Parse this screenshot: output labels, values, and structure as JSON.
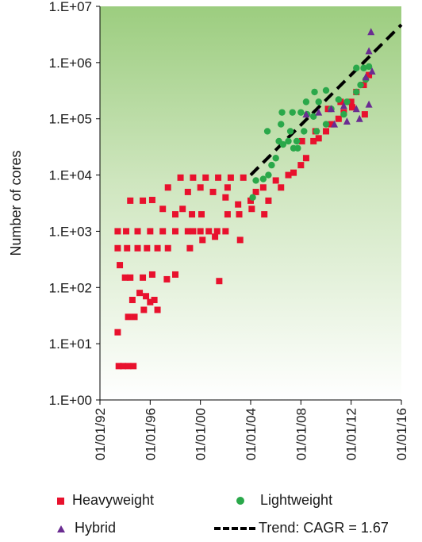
{
  "chart_data": {
    "type": "scatter",
    "title": "",
    "xlabel": "",
    "ylabel": "Number of cores",
    "y_scale": "log",
    "ylim": [
      1,
      10000000
    ],
    "xlim": [
      "1992-01-01",
      "2016-01-01"
    ],
    "x_ticks": [
      "01/01/92",
      "01/01/96",
      "01/01/00",
      "01/01/04",
      "01/01/08",
      "01/01/12",
      "01/01/16"
    ],
    "y_ticks": [
      "1.E+00",
      "1.E+01",
      "1.E+02",
      "1.E+03",
      "1.E+04",
      "1.E+05",
      "1.E+06",
      "1.E+07"
    ],
    "background": "gradient green (top) to white (bottom)",
    "legend_position": "bottom",
    "series": [
      {
        "name": "Heavyweight",
        "marker": "square",
        "color": "#e8112d",
        "points": [
          [
            "1993-07-01",
            4
          ],
          [
            "1993-11-01",
            4
          ],
          [
            "1994-04-01",
            4
          ],
          [
            "1994-09-01",
            4
          ],
          [
            "1993-06-01",
            16
          ],
          [
            "1994-04-01",
            30
          ],
          [
            "1994-10-01",
            30
          ],
          [
            "1994-08-01",
            60
          ],
          [
            "1995-03-01",
            80
          ],
          [
            "1995-07-01",
            40
          ],
          [
            "1995-09-01",
            70
          ],
          [
            "1996-01-01",
            55
          ],
          [
            "1996-08-01",
            40
          ],
          [
            "1996-05-01",
            60
          ],
          [
            "1993-08-01",
            250
          ],
          [
            "1994-01-01",
            150
          ],
          [
            "1994-06-01",
            150
          ],
          [
            "1995-06-01",
            150
          ],
          [
            "1996-03-01",
            170
          ],
          [
            "1997-05-01",
            140
          ],
          [
            "1998-01-01",
            170
          ],
          [
            "2001-07-01",
            130
          ],
          [
            "1993-06-01",
            500
          ],
          [
            "1994-03-01",
            500
          ],
          [
            "1995-01-01",
            500
          ],
          [
            "1995-10-01",
            500
          ],
          [
            "1996-08-01",
            500
          ],
          [
            "1997-06-01",
            500
          ],
          [
            "1993-06-01",
            1000
          ],
          [
            "1994-02-01",
            1000
          ],
          [
            "1995-01-01",
            1000
          ],
          [
            "1996-01-01",
            1000
          ],
          [
            "1997-01-01",
            1000
          ],
          [
            "1998-01-01",
            1000
          ],
          [
            "1999-01-01",
            1000
          ],
          [
            "1999-06-01",
            1000
          ],
          [
            "2000-01-01",
            1000
          ],
          [
            "2000-09-01",
            1000
          ],
          [
            "2001-05-01",
            1000
          ],
          [
            "2002-01-01",
            1000
          ],
          [
            "1994-06-01",
            3500
          ],
          [
            "1995-06-01",
            3500
          ],
          [
            "1996-03-01",
            3600
          ],
          [
            "1997-01-01",
            2500
          ],
          [
            "1998-01-01",
            2000
          ],
          [
            "1998-08-01",
            2500
          ],
          [
            "1999-05-01",
            2000
          ],
          [
            "2000-02-01",
            2000
          ],
          [
            "1997-06-01",
            6000
          ],
          [
            "1998-06-01",
            9000
          ],
          [
            "1999-06-01",
            9000
          ],
          [
            "2000-06-01",
            9000
          ],
          [
            "2001-06-01",
            9000
          ],
          [
            "2002-06-01",
            9000
          ],
          [
            "2003-06-01",
            9000
          ],
          [
            "1999-01-01",
            5000
          ],
          [
            "2000-01-01",
            6000
          ],
          [
            "2001-01-01",
            5000
          ],
          [
            "2002-01-01",
            4000
          ],
          [
            "2003-01-01",
            3000
          ],
          [
            "2004-01-01",
            3500
          ],
          [
            "2004-06-01",
            5000
          ],
          [
            "2005-01-01",
            6000
          ],
          [
            "2005-06-01",
            3500
          ],
          [
            "2002-03-01",
            6000
          ],
          [
            "2003-02-01",
            2000
          ],
          [
            "2004-02-01",
            2500
          ],
          [
            "2005-02-01",
            2000
          ],
          [
            "1999-03-01",
            500
          ],
          [
            "2000-03-01",
            700
          ],
          [
            "2001-03-01",
            800
          ],
          [
            "2002-03-01",
            2000
          ],
          [
            "2003-03-01",
            700
          ],
          [
            "2006-01-01",
            8000
          ],
          [
            "2006-06-01",
            6000
          ],
          [
            "2007-01-01",
            10000
          ],
          [
            "2007-06-01",
            11000
          ],
          [
            "2008-01-01",
            15000
          ],
          [
            "2008-06-01",
            20000
          ],
          [
            "2009-01-01",
            40000
          ],
          [
            "2009-06-01",
            45000
          ],
          [
            "2010-01-01",
            60000
          ],
          [
            "2010-06-01",
            80000
          ],
          [
            "2011-01-01",
            100000
          ],
          [
            "2011-06-01",
            130000
          ],
          [
            "2012-01-01",
            200000
          ],
          [
            "2012-06-01",
            300000
          ],
          [
            "2013-01-01",
            400000
          ],
          [
            "2013-06-01",
            600000
          ],
          [
            "2008-02-01",
            40000
          ],
          [
            "2009-03-01",
            60000
          ],
          [
            "2010-03-01",
            150000
          ],
          [
            "2011-03-01",
            200000
          ],
          [
            "2012-02-01",
            160000
          ],
          [
            "2013-02-01",
            120000
          ]
        ]
      },
      {
        "name": "Lightweight",
        "marker": "circle",
        "color": "#2aa84a",
        "points": [
          [
            "2004-03-01",
            4000
          ],
          [
            "2004-06-01",
            8000
          ],
          [
            "2005-01-01",
            8500
          ],
          [
            "2005-06-01",
            10000
          ],
          [
            "2005-09-01",
            15000
          ],
          [
            "2006-01-01",
            20000
          ],
          [
            "2006-04-01",
            40000
          ],
          [
            "2006-08-01",
            35000
          ],
          [
            "2007-01-01",
            40000
          ],
          [
            "2007-06-01",
            30000
          ],
          [
            "2007-10-01",
            30000
          ],
          [
            "2005-05-01",
            60000
          ],
          [
            "2006-06-01",
            80000
          ],
          [
            "2007-03-01",
            60000
          ],
          [
            "2007-09-01",
            40000
          ],
          [
            "2006-07-01",
            130000
          ],
          [
            "2007-05-01",
            130000
          ],
          [
            "2008-01-01",
            130000
          ],
          [
            "2008-07-01",
            120000
          ],
          [
            "2009-01-01",
            110000
          ],
          [
            "2008-04-01",
            60000
          ],
          [
            "2009-04-01",
            60000
          ],
          [
            "2010-01-01",
            80000
          ],
          [
            "2008-06-01",
            200000
          ],
          [
            "2009-06-01",
            200000
          ],
          [
            "2010-06-01",
            150000
          ],
          [
            "2011-06-01",
            120000
          ],
          [
            "2009-02-01",
            300000
          ],
          [
            "2010-01-01",
            320000
          ],
          [
            "2011-01-01",
            220000
          ],
          [
            "2011-09-01",
            200000
          ],
          [
            "2012-06-01",
            300000
          ],
          [
            "2012-10-01",
            400000
          ],
          [
            "2013-03-01",
            500000
          ],
          [
            "2012-06-01",
            800000
          ],
          [
            "2013-01-01",
            800000
          ],
          [
            "2013-06-01",
            850000
          ]
        ]
      },
      {
        "name": "Hybrid",
        "marker": "triangle",
        "color": "#6a2c91",
        "points": [
          [
            "2008-06-01",
            120000
          ],
          [
            "2009-06-01",
            130000
          ],
          [
            "2010-06-01",
            150000
          ],
          [
            "2011-06-01",
            170000
          ],
          [
            "2012-06-01",
            150000
          ],
          [
            "2013-06-01",
            180000
          ],
          [
            "2010-09-01",
            80000
          ],
          [
            "2011-09-01",
            90000
          ],
          [
            "2012-09-01",
            100000
          ],
          [
            "2013-03-01",
            550000
          ],
          [
            "2013-09-01",
            700000
          ],
          [
            "2013-06-01",
            1600000
          ],
          [
            "2013-08-01",
            3500000
          ]
        ]
      }
    ],
    "trend": {
      "name": "Trend: CAGR = 1.67",
      "style": "dashed",
      "color": "#000000",
      "cagr": 1.67,
      "points": [
        [
          "2004-01-01",
          10000
        ],
        [
          "2016-01-01",
          4710000
        ]
      ]
    }
  },
  "legend": {
    "heavyweight": "Heavyweight",
    "lightweight": "Lightweight",
    "hybrid": "Hybrid",
    "trend": "Trend: CAGR = 1.67"
  }
}
